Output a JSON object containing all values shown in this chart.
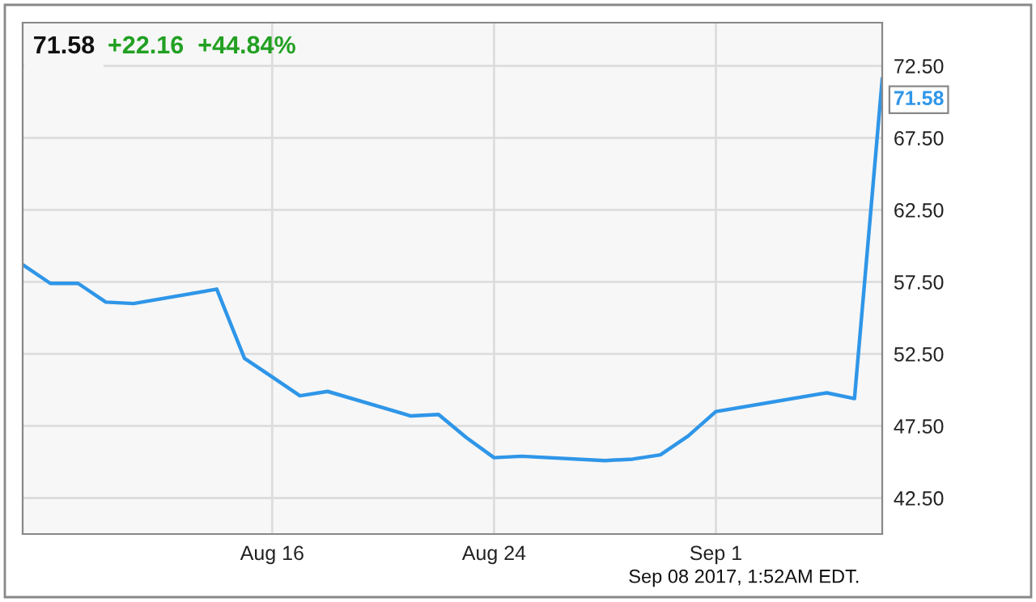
{
  "chart_data": {
    "type": "line",
    "title": "71.58",
    "subtitle": "+22.16  +44.84%",
    "annotations": [
      {
        "text": "71.58",
        "x": "2017-09-07",
        "y": 71.58
      },
      "Sep 08 2017, 1:52AM EDT."
    ],
    "x": [
      "2017-08-07",
      "2017-08-08",
      "2017-08-09",
      "2017-08-10",
      "2017-08-11",
      "2017-08-14",
      "2017-08-15",
      "2017-08-16",
      "2017-08-17",
      "2017-08-18",
      "2017-08-21",
      "2017-08-22",
      "2017-08-23",
      "2017-08-24",
      "2017-08-25",
      "2017-08-28",
      "2017-08-29",
      "2017-08-30",
      "2017-08-31",
      "2017-09-01",
      "2017-09-05",
      "2017-09-06",
      "2017-09-07"
    ],
    "series": [
      {
        "color": "#2f96e8",
        "values": [
          58.7,
          57.4,
          57.4,
          56.1,
          56.0,
          57.0,
          52.2,
          50.9,
          49.6,
          49.9,
          48.2,
          48.3,
          46.7,
          45.3,
          45.4,
          45.1,
          45.2,
          45.5,
          46.8,
          48.5,
          49.8,
          49.4,
          71.58
        ]
      }
    ],
    "xlim": [
      "2017-08-07",
      "2017-09-07"
    ],
    "xticks": [
      {
        "value": "2017-08-16",
        "label": "Aug 16"
      },
      {
        "value": "2017-08-24",
        "label": "Aug 24"
      },
      {
        "value": "2017-09-01",
        "label": "Sep 1"
      }
    ],
    "ylim": [
      40,
      75.5
    ],
    "yticks": [
      {
        "value": 42.5,
        "label": "42.50"
      },
      {
        "value": 47.5,
        "label": "47.50"
      },
      {
        "value": 52.5,
        "label": "52.50"
      },
      {
        "value": 57.5,
        "label": "57.50"
      },
      {
        "value": 62.5,
        "label": "62.50"
      },
      {
        "value": 67.5,
        "label": "67.50"
      },
      {
        "value": 72.5,
        "label": "72.50"
      }
    ],
    "grid": true,
    "marker": "none",
    "line_style": "solid"
  }
}
